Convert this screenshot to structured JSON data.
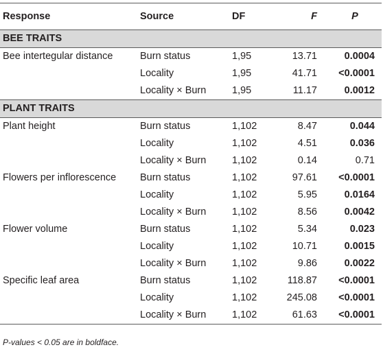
{
  "header": {
    "response": "Response",
    "source": "Source",
    "df": "DF",
    "f": "F",
    "p": "P"
  },
  "sections": [
    {
      "title": "BEE TRAITS",
      "rows": [
        {
          "response": "Bee intertegular distance",
          "source": "Burn status",
          "df": "1,95",
          "f": "13.71",
          "p": "0.0004",
          "sig": true
        },
        {
          "response": "",
          "source": "Locality",
          "df": "1,95",
          "f": "41.71",
          "p": "<0.0001",
          "sig": true
        },
        {
          "response": "",
          "source": "Locality × Burn",
          "df": "1,95",
          "f": "11.17",
          "p": "0.0012",
          "sig": true
        }
      ]
    },
    {
      "title": "PLANT TRAITS",
      "rows": [
        {
          "response": "Plant height",
          "source": "Burn status",
          "df": "1,102",
          "f": "8.47",
          "p": "0.044",
          "sig": true
        },
        {
          "response": "",
          "source": "Locality",
          "df": "1,102",
          "f": "4.51",
          "p": "0.036",
          "sig": true
        },
        {
          "response": "",
          "source": "Locality × Burn",
          "df": "1,102",
          "f": "0.14",
          "p": "0.71",
          "sig": false
        },
        {
          "response": "Flowers per inflorescence",
          "source": "Burn status",
          "df": "1,102",
          "f": "97.61",
          "p": "<0.0001",
          "sig": true
        },
        {
          "response": "",
          "source": "Locality",
          "df": "1,102",
          "f": "5.95",
          "p": "0.0164",
          "sig": true
        },
        {
          "response": "",
          "source": "Locality × Burn",
          "df": "1,102",
          "f": "8.56",
          "p": "0.0042",
          "sig": true
        },
        {
          "response": "Flower volume",
          "source": "Burn status",
          "df": "1,102",
          "f": "5.34",
          "p": "0.023",
          "sig": true
        },
        {
          "response": "",
          "source": "Locality",
          "df": "1,102",
          "f": "10.71",
          "p": "0.0015",
          "sig": true
        },
        {
          "response": "",
          "source": "Locality × Burn",
          "df": "1,102",
          "f": "9.86",
          "p": "0.0022",
          "sig": true
        },
        {
          "response": "Specific leaf area",
          "source": "Burn status",
          "df": "1,102",
          "f": "118.87",
          "p": "<0.0001",
          "sig": true
        },
        {
          "response": "",
          "source": "Locality",
          "df": "1,102",
          "f": "245.08",
          "p": "<0.0001",
          "sig": true
        },
        {
          "response": "",
          "source": "Locality × Burn",
          "df": "1,102",
          "f": "61.63",
          "p": "<0.0001",
          "sig": true
        }
      ]
    }
  ],
  "footnote": "P-values < 0.05 are in boldface."
}
